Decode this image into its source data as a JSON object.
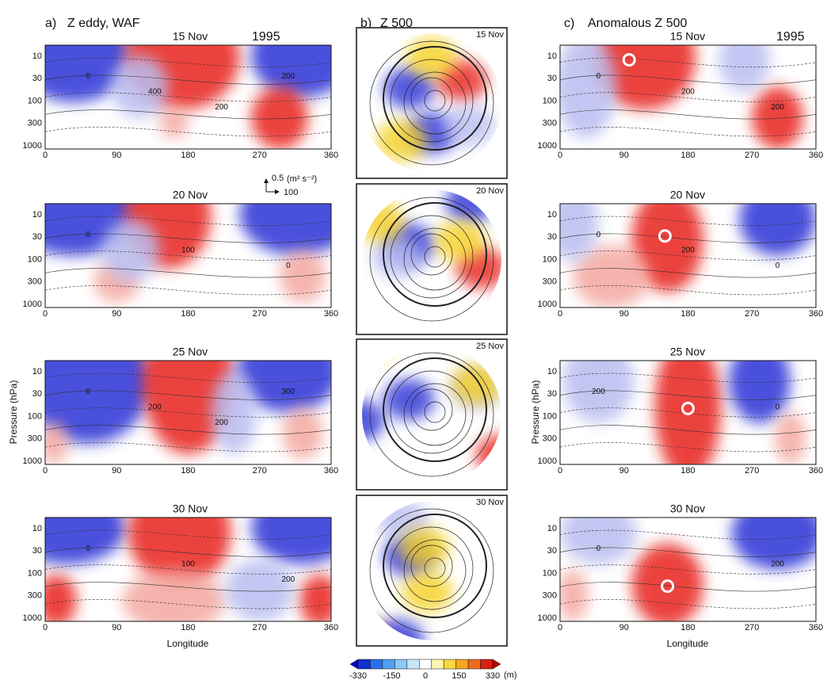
{
  "panels": [
    {
      "label": "a)",
      "title": "Z eddy, WAF",
      "year": "1995"
    },
    {
      "label": "b)",
      "title": "Z 500"
    },
    {
      "label": "c)",
      "title": "Anomalous Z 500",
      "year": "1995"
    }
  ],
  "dates": [
    "15 Nov",
    "20 Nov",
    "25 Nov",
    "30 Nov"
  ],
  "y_axis": {
    "label": "Pressure (hPa)",
    "ticks": [
      "10",
      "30",
      "100",
      "300",
      "1000"
    ]
  },
  "x_axis": {
    "label": "Longitude",
    "ticks": [
      "0",
      "90",
      "180",
      "270",
      "360"
    ]
  },
  "vector_key": {
    "vertical": "0.5",
    "horizontal": "100",
    "units": "(m² s⁻²)"
  },
  "colorbar": {
    "ticks": [
      "-330",
      "-150",
      "0",
      "150",
      "330"
    ],
    "unit": "(m)"
  },
  "contour_labels": {
    "a": [
      [
        "0",
        "400",
        "200",
        "200"
      ],
      [
        "0",
        "100",
        "0"
      ],
      [
        "0",
        "200",
        "200",
        "300"
      ],
      [
        "0",
        "100",
        "200"
      ]
    ],
    "c": [
      [
        "0",
        "200",
        "200"
      ],
      [
        "0",
        "200",
        "0"
      ],
      [
        "200",
        "0"
      ],
      [
        "0",
        "200"
      ]
    ]
  }
}
